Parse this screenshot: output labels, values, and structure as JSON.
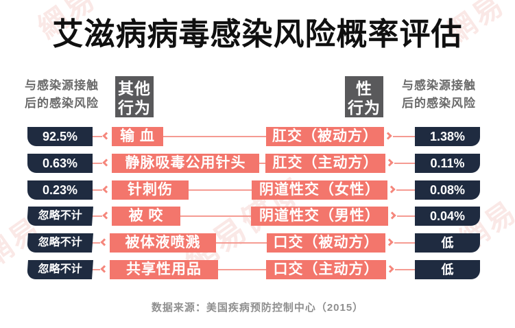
{
  "title": "艾滋病病毒感染风险概率评估",
  "header": {
    "left_risk_line1": "与感染源接触",
    "left_risk_line2": "后的感染风险",
    "left_category_line1": "其他",
    "left_category_line2": "行为",
    "right_category_line1": "性",
    "right_category_line2": "行为",
    "right_risk_line1": "与感染源接触",
    "right_risk_line2": "后的感染风险"
  },
  "rows": [
    {
      "left_value": "92.5%",
      "left_label": "输 血",
      "right_label": "肛交（被动方）",
      "right_value": "1.38%"
    },
    {
      "left_value": "0.63%",
      "left_label": "静脉吸毒公用针头",
      "right_label": "肛交（主动方）",
      "right_value": "0.11%"
    },
    {
      "left_value": "0.23%",
      "left_label": "针刺伤",
      "right_label": "阴道性交（女性）",
      "right_value": "0.08%"
    },
    {
      "left_value": "忽略不计",
      "left_label": "被 咬",
      "right_label": "阴道性交（男性）",
      "right_value": "0.04%"
    },
    {
      "left_value": "忽略不计",
      "left_label": "被体液喷溅",
      "right_label": "口交（被动方）",
      "right_value": "低"
    },
    {
      "left_value": "忽略不计",
      "left_label": "共享性用品",
      "right_label": "口交（主动方）",
      "right_value": "低"
    }
  ],
  "footer": {
    "source": "数据来源：美国疾病预防控制中心（2015）"
  },
  "watermark": {
    "short": "網易",
    "long": "網易健康"
  },
  "colors": {
    "navy_box": "#1f2b40",
    "salmon_box": "#f3766c",
    "connector_line": "#f59b92",
    "category_box": "#59595b",
    "header_text": "#6a6a6a",
    "title_text": "#101010",
    "source_text": "#8f8f8f",
    "watermark": "#eeb2ac"
  },
  "chart_data": {
    "type": "table",
    "title": "艾滋病病毒感染风险概率评估",
    "value_label": "与感染源接触后的感染风险",
    "groups": [
      {
        "category": "其他行为",
        "rows": [
          {
            "behavior": "输 血",
            "risk": "92.5%"
          },
          {
            "behavior": "静脉吸毒公用针头",
            "risk": "0.63%"
          },
          {
            "behavior": "针刺伤",
            "risk": "0.23%"
          },
          {
            "behavior": "被 咬",
            "risk": "忽略不计"
          },
          {
            "behavior": "被体液喷溅",
            "risk": "忽略不计"
          },
          {
            "behavior": "共享性用品",
            "risk": "忽略不计"
          }
        ]
      },
      {
        "category": "性行为",
        "rows": [
          {
            "behavior": "肛交（被动方）",
            "risk": "1.38%"
          },
          {
            "behavior": "肛交（主动方）",
            "risk": "0.11%"
          },
          {
            "behavior": "阴道性交（女性）",
            "risk": "0.08%"
          },
          {
            "behavior": "阴道性交（男性）",
            "risk": "0.04%"
          },
          {
            "behavior": "口交（被动方）",
            "risk": "低"
          },
          {
            "behavior": "口交（主动方）",
            "risk": "低"
          }
        ]
      }
    ],
    "source": "数据来源：美国疾病预防控制中心（2015）"
  }
}
